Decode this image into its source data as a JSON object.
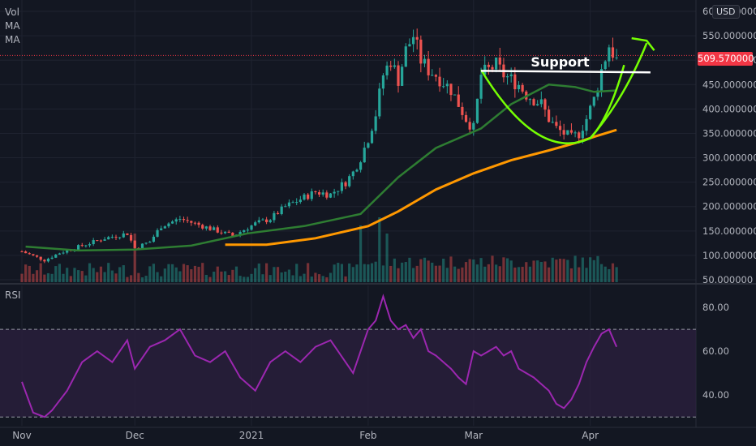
{
  "header": {
    "indicators": [
      "Vol",
      "MA",
      "MA"
    ],
    "currency": "USD",
    "last_price_label": "509.570000"
  },
  "rsi_panel": {
    "label": "RSI"
  },
  "annotations": {
    "support_label": "Support"
  },
  "colors": {
    "up": "#26a69a",
    "down": "#ef5350",
    "ma_fast": "#2e7d32",
    "ma_slow": "#ff9800",
    "support": "#ffffff",
    "cup": "#76ff03",
    "rsi": "#9c27b0",
    "rsi_band": "#2a1f3d",
    "last_price": "#f23645",
    "background": "#131722"
  },
  "chart_data": [
    {
      "type": "candlestick",
      "price_axis_ticks": [
        "600.000000",
        "550.000000",
        "500.000000",
        "450.000000",
        "400.000000",
        "350.000000",
        "300.000000",
        "250.000000",
        "200.000000",
        "150.000000",
        "100.000000",
        "50.000000"
      ],
      "price_axis_values": [
        600,
        550,
        500,
        450,
        400,
        350,
        300,
        250,
        200,
        150,
        100,
        50
      ],
      "ylim": [
        45,
        610
      ],
      "x_labels": [
        {
          "label": "Nov",
          "day": 0
        },
        {
          "label": "Dec",
          "day": 30
        },
        {
          "label": "2021",
          "day": 61
        },
        {
          "label": "Feb",
          "day": 92
        },
        {
          "label": "Mar",
          "day": 120
        },
        {
          "label": "Apr",
          "day": 151
        }
      ],
      "last_price": 509.57,
      "close_anchors": [
        [
          0,
          108
        ],
        [
          6,
          90
        ],
        [
          10,
          105
        ],
        [
          16,
          120
        ],
        [
          22,
          135
        ],
        [
          28,
          145
        ],
        [
          30,
          115
        ],
        [
          34,
          128
        ],
        [
          37,
          160
        ],
        [
          42,
          175
        ],
        [
          48,
          160
        ],
        [
          52,
          150
        ],
        [
          56,
          140
        ],
        [
          62,
          165
        ],
        [
          66,
          175
        ],
        [
          70,
          200
        ],
        [
          74,
          215
        ],
        [
          78,
          230
        ],
        [
          82,
          225
        ],
        [
          86,
          250
        ],
        [
          88,
          270
        ],
        [
          90,
          300
        ],
        [
          92,
          340
        ],
        [
          94,
          390
        ],
        [
          96,
          470
        ],
        [
          98,
          500
        ],
        [
          100,
          460
        ],
        [
          102,
          520
        ],
        [
          104,
          550
        ],
        [
          106,
          500
        ],
        [
          108,
          480
        ],
        [
          110,
          470
        ],
        [
          112,
          455
        ],
        [
          114,
          440
        ],
        [
          116,
          410
        ],
        [
          118,
          380
        ],
        [
          120,
          360
        ],
        [
          122,
          470
        ],
        [
          124,
          480
        ],
        [
          126,
          490
        ],
        [
          128,
          470
        ],
        [
          130,
          460
        ],
        [
          132,
          450
        ],
        [
          134,
          430
        ],
        [
          136,
          420
        ],
        [
          138,
          410
        ],
        [
          140,
          380
        ],
        [
          142,
          360
        ],
        [
          144,
          350
        ],
        [
          146,
          340
        ],
        [
          148,
          350
        ],
        [
          150,
          380
        ],
        [
          152,
          420
        ],
        [
          154,
          480
        ],
        [
          156,
          530
        ],
        [
          158,
          500
        ]
      ],
      "ma_fast_series": [
        [
          1,
          118
        ],
        [
          15,
          110
        ],
        [
          30,
          112
        ],
        [
          45,
          120
        ],
        [
          60,
          145
        ],
        [
          75,
          160
        ],
        [
          90,
          185
        ],
        [
          100,
          260
        ],
        [
          110,
          320
        ],
        [
          122,
          360
        ],
        [
          130,
          410
        ],
        [
          140,
          450
        ],
        [
          147,
          445
        ],
        [
          152,
          435
        ],
        [
          158,
          438
        ]
      ],
      "ma_slow_series": [
        [
          54,
          122
        ],
        [
          65,
          122
        ],
        [
          78,
          135
        ],
        [
          92,
          160
        ],
        [
          100,
          190
        ],
        [
          110,
          235
        ],
        [
          120,
          268
        ],
        [
          130,
          295
        ],
        [
          140,
          315
        ],
        [
          147,
          330
        ],
        [
          152,
          343
        ],
        [
          158,
          357
        ]
      ],
      "volume_spikes": [
        [
          30,
          60
        ],
        [
          90,
          70
        ],
        [
          95,
          80
        ],
        [
          97,
          60
        ]
      ]
    },
    {
      "type": "line",
      "name": "RSI",
      "yticks": [
        "80.00",
        "60.00",
        "40.00"
      ],
      "ytick_values": [
        80,
        60,
        40
      ],
      "ylim": [
        26,
        90
      ],
      "band": [
        30,
        70
      ],
      "anchors": [
        [
          0,
          46
        ],
        [
          3,
          32
        ],
        [
          6,
          30
        ],
        [
          8,
          33
        ],
        [
          12,
          42
        ],
        [
          16,
          55
        ],
        [
          20,
          60
        ],
        [
          24,
          55
        ],
        [
          28,
          65
        ],
        [
          30,
          52
        ],
        [
          34,
          62
        ],
        [
          38,
          65
        ],
        [
          42,
          70
        ],
        [
          46,
          58
        ],
        [
          50,
          55
        ],
        [
          54,
          60
        ],
        [
          58,
          48
        ],
        [
          62,
          42
        ],
        [
          66,
          55
        ],
        [
          70,
          60
        ],
        [
          74,
          55
        ],
        [
          78,
          62
        ],
        [
          82,
          65
        ],
        [
          86,
          55
        ],
        [
          88,
          50
        ],
        [
          90,
          60
        ],
        [
          92,
          70
        ],
        [
          94,
          74
        ],
        [
          96,
          85
        ],
        [
          98,
          74
        ],
        [
          100,
          70
        ],
        [
          102,
          72
        ],
        [
          104,
          66
        ],
        [
          106,
          70
        ],
        [
          108,
          60
        ],
        [
          110,
          58
        ],
        [
          112,
          55
        ],
        [
          114,
          52
        ],
        [
          116,
          48
        ],
        [
          118,
          45
        ],
        [
          120,
          60
        ],
        [
          122,
          58
        ],
        [
          124,
          60
        ],
        [
          126,
          62
        ],
        [
          128,
          58
        ],
        [
          130,
          60
        ],
        [
          132,
          52
        ],
        [
          134,
          50
        ],
        [
          136,
          48
        ],
        [
          138,
          45
        ],
        [
          140,
          42
        ],
        [
          142,
          36
        ],
        [
          144,
          34
        ],
        [
          146,
          38
        ],
        [
          148,
          45
        ],
        [
          150,
          55
        ],
        [
          152,
          62
        ],
        [
          154,
          68
        ],
        [
          156,
          70
        ],
        [
          158,
          62
        ]
      ]
    }
  ]
}
